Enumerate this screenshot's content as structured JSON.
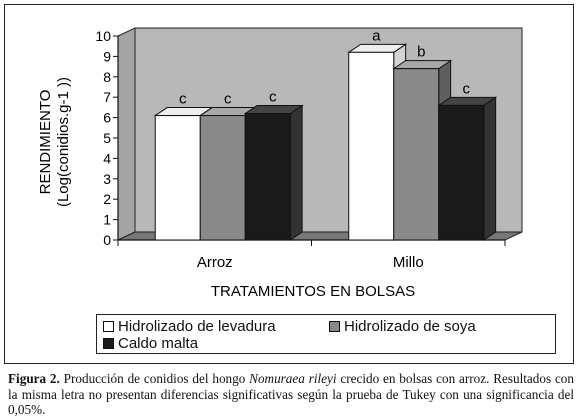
{
  "chart_data": {
    "type": "bar",
    "categories": [
      "Arroz",
      "Millo"
    ],
    "series": [
      {
        "name": "Hidrolizado de levadura",
        "values": [
          6.1,
          9.2
        ],
        "labels": [
          "c",
          "a"
        ],
        "color": "#ffffff"
      },
      {
        "name": "Hidrolizado de soya",
        "values": [
          6.1,
          8.4
        ],
        "labels": [
          "c",
          "b"
        ],
        "color": "#8a8a8a"
      },
      {
        "name": "Caldo malta",
        "values": [
          6.2,
          6.6
        ],
        "labels": [
          "c",
          "c"
        ],
        "color": "#1a1a1a"
      }
    ],
    "xlabel": "TRATAMIENTOS EN BOLSAS",
    "ylabel_line1": "RENDIMIENTO",
    "ylabel_line2": "(Log(conidios.g-1 ))",
    "ylim": [
      0,
      10
    ],
    "yticks": [
      0,
      1,
      2,
      3,
      4,
      5,
      6,
      7,
      8,
      9,
      10
    ],
    "grid": false,
    "legend_position": "bottom",
    "wall_color": "#b8b8b8",
    "floor_color": "#777777"
  },
  "caption": {
    "figure_label": "Figura 2.",
    "text_before_species": "Producción de conidios del hongo",
    "species": "Nomuraea rileyi",
    "text_after_species": "crecido en bolsas con arroz. Resultados con la misma letra no presentan diferencias significativas según la prueba de Tukey con una significancia del 0,05%."
  }
}
